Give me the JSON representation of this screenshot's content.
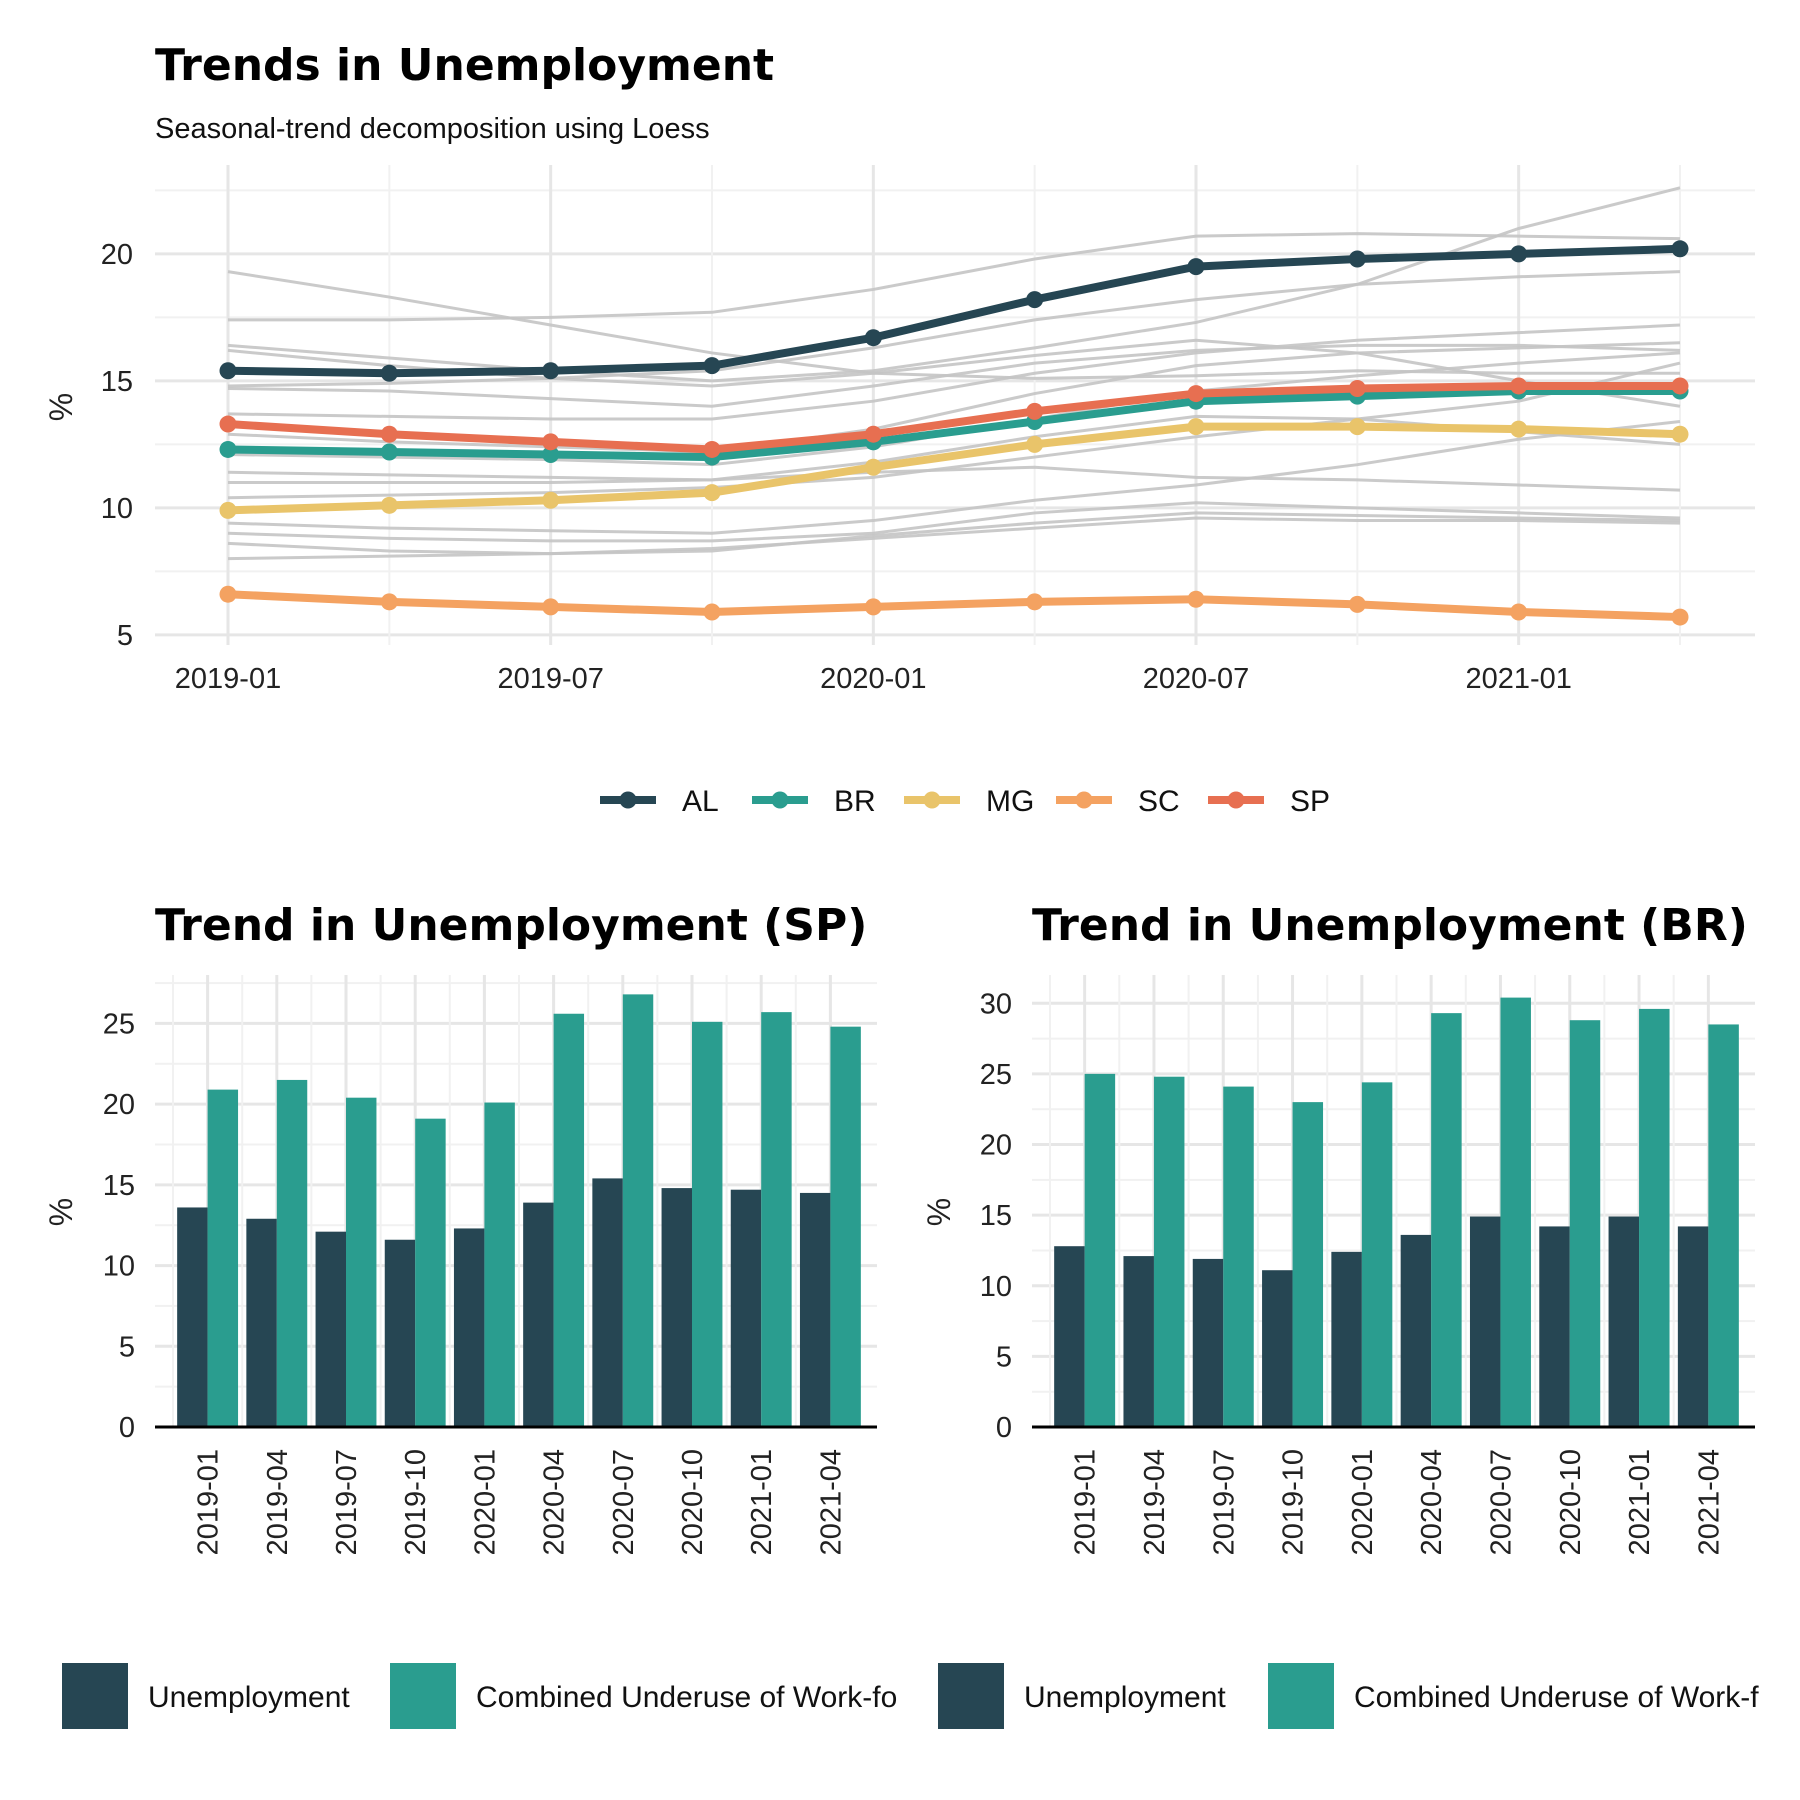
{
  "colors": {
    "AL": "#264653",
    "BR": "#2a9d8f",
    "MG": "#e9c46a",
    "SC": "#f4a261",
    "SP": "#e76f51",
    "background_line": "#c4c4c4",
    "unemployment": "#264653",
    "underuse": "#2a9d8f"
  },
  "chart_data": [
    {
      "type": "line",
      "title": "Trends in Unemployment",
      "subtitle": "Seasonal-trend decomposition using Loess",
      "xlabel": "",
      "ylabel": "%",
      "x": [
        "2019-01",
        "2019-04",
        "2019-07",
        "2019-10",
        "2020-01",
        "2020-04",
        "2020-07",
        "2020-10",
        "2021-01",
        "2021-04"
      ],
      "x_tick_labels": [
        "2019-01",
        "2019-07",
        "2020-01",
        "2020-07",
        "2021-01"
      ],
      "y_ticks": [
        5,
        10,
        15,
        20
      ],
      "ylim": [
        4.6,
        23.5
      ],
      "grid": true,
      "legend_position": "bottom",
      "series": [
        {
          "name": "AL",
          "values": [
            15.4,
            15.3,
            15.4,
            15.6,
            16.7,
            18.2,
            19.5,
            19.8,
            20.0,
            20.2
          ]
        },
        {
          "name": "BR",
          "values": [
            12.3,
            12.2,
            12.1,
            12.0,
            12.6,
            13.4,
            14.2,
            14.4,
            14.6,
            14.6
          ]
        },
        {
          "name": "MG",
          "values": [
            9.9,
            10.1,
            10.3,
            10.6,
            11.6,
            12.5,
            13.2,
            13.2,
            13.1,
            12.9
          ]
        },
        {
          "name": "SC",
          "values": [
            6.6,
            6.3,
            6.1,
            5.9,
            6.1,
            6.3,
            6.4,
            6.2,
            5.9,
            5.7
          ]
        },
        {
          "name": "SP",
          "values": [
            13.3,
            12.9,
            12.6,
            12.3,
            12.9,
            13.8,
            14.5,
            14.7,
            14.8,
            14.8
          ]
        }
      ],
      "background_series": [
        [
          19.3,
          18.3,
          17.2,
          16.1,
          15.3,
          15.1,
          15.2,
          15.4,
          15.3,
          15.3
        ],
        [
          17.4,
          17.4,
          17.5,
          17.7,
          18.6,
          19.8,
          20.7,
          20.8,
          20.7,
          20.6
        ],
        [
          16.4,
          15.9,
          15.4,
          15.0,
          15.4,
          16.3,
          17.3,
          18.8,
          21.0,
          22.6
        ],
        [
          16.2,
          15.6,
          15.1,
          14.8,
          15.3,
          16.0,
          16.6,
          16.1,
          15.0,
          14.0
        ],
        [
          14.7,
          14.6,
          14.3,
          14.0,
          14.8,
          15.7,
          16.2,
          16.4,
          16.4,
          16.2
        ],
        [
          14.8,
          14.9,
          15.1,
          15.4,
          16.3,
          17.4,
          18.2,
          18.8,
          19.1,
          19.3
        ],
        [
          13.7,
          13.6,
          13.5,
          13.5,
          14.2,
          15.3,
          16.1,
          16.6,
          16.9,
          17.2
        ],
        [
          12.9,
          12.6,
          12.4,
          12.2,
          13.1,
          14.5,
          15.6,
          16.1,
          16.3,
          16.5
        ],
        [
          12.1,
          12.0,
          11.9,
          11.7,
          12.4,
          13.5,
          14.6,
          15.2,
          15.7,
          16.1
        ],
        [
          11.4,
          11.3,
          11.2,
          11.1,
          11.8,
          12.8,
          13.6,
          13.5,
          13.0,
          12.5
        ],
        [
          11.0,
          11.0,
          11.0,
          11.1,
          11.4,
          11.6,
          11.2,
          11.1,
          10.9,
          10.7
        ],
        [
          10.4,
          10.5,
          10.6,
          10.8,
          11.2,
          12.0,
          12.8,
          13.5,
          14.2,
          15.7
        ],
        [
          9.4,
          9.2,
          9.1,
          9.0,
          9.5,
          10.3,
          10.9,
          11.7,
          12.7,
          13.4
        ],
        [
          9.0,
          8.8,
          8.7,
          8.7,
          9.0,
          9.8,
          10.2,
          10.0,
          9.8,
          9.6
        ],
        [
          8.6,
          8.3,
          8.2,
          8.3,
          8.9,
          9.4,
          9.8,
          9.7,
          9.6,
          9.5
        ],
        [
          8.0,
          8.1,
          8.2,
          8.4,
          8.8,
          9.2,
          9.6,
          9.5,
          9.5,
          9.4
        ]
      ]
    },
    {
      "type": "bar",
      "title": "Trend in Unemployment (SP)",
      "xlabel": "",
      "ylabel": "%",
      "categories": [
        "2019-01",
        "2019-04",
        "2019-07",
        "2019-10",
        "2020-01",
        "2020-04",
        "2020-07",
        "2020-10",
        "2021-01",
        "2021-04"
      ],
      "y_ticks": [
        0,
        5,
        10,
        15,
        20,
        25
      ],
      "ylim": [
        0,
        28
      ],
      "grid": true,
      "legend_position": "bottom",
      "series": [
        {
          "name": "Unemployment",
          "values": [
            13.6,
            12.9,
            12.1,
            11.6,
            12.3,
            13.9,
            15.4,
            14.8,
            14.7,
            14.5
          ]
        },
        {
          "name": "Combined Underuse of Work-fo",
          "values": [
            20.9,
            21.5,
            20.4,
            19.1,
            20.1,
            25.6,
            26.8,
            25.1,
            25.7,
            24.8
          ]
        }
      ]
    },
    {
      "type": "bar",
      "title": "Trend in Unemployment (BR)",
      "xlabel": "",
      "ylabel": "%",
      "categories": [
        "2019-01",
        "2019-04",
        "2019-07",
        "2019-10",
        "2020-01",
        "2020-04",
        "2020-07",
        "2020-10",
        "2021-01",
        "2021-04"
      ],
      "y_ticks": [
        0,
        5,
        10,
        15,
        20,
        25,
        30
      ],
      "ylim": [
        0,
        32
      ],
      "grid": true,
      "legend_position": "bottom",
      "series": [
        {
          "name": "Unemployment",
          "values": [
            12.8,
            12.1,
            11.9,
            11.1,
            12.4,
            13.6,
            14.9,
            14.2,
            14.9,
            14.2
          ]
        },
        {
          "name": "Combined Underuse of Work-f",
          "values": [
            25.0,
            24.8,
            24.1,
            23.0,
            24.4,
            29.3,
            30.4,
            28.8,
            29.6,
            28.5
          ]
        }
      ]
    }
  ]
}
